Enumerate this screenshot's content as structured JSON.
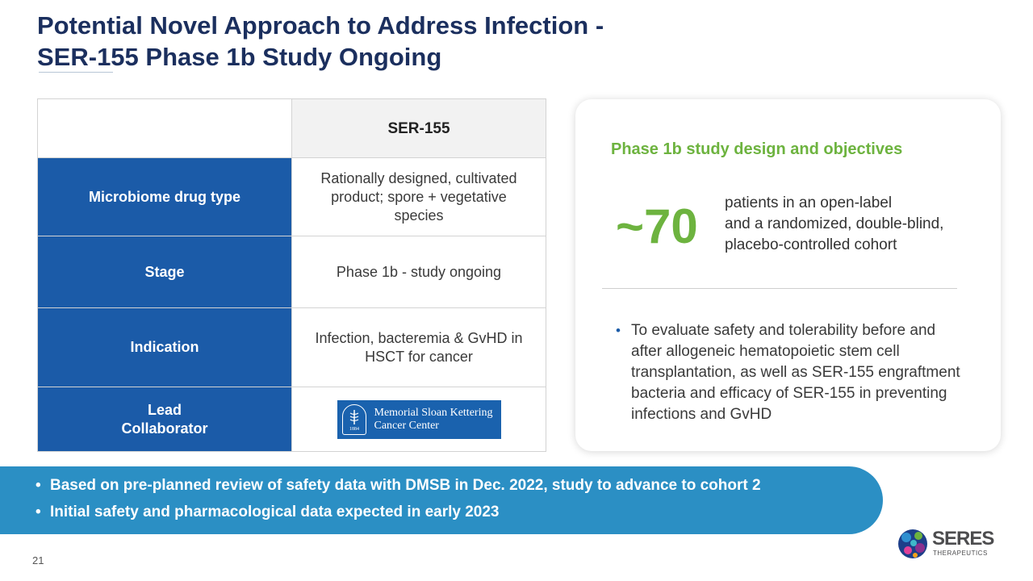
{
  "title": {
    "line1": "Potential Novel Approach to Address Infection -",
    "line2": "SER-155 Phase 1b Study Ongoing"
  },
  "table": {
    "column_header": "SER-155",
    "rows": [
      {
        "label": "Microbiome drug type",
        "value": "Rationally designed, cultivated product; spore + vegetative species"
      },
      {
        "label": "Stage",
        "value": "Phase 1b - study ongoing"
      },
      {
        "label": "Indication",
        "value": "Infection, bacteremia & GvHD in HSCT for cancer"
      },
      {
        "label": "Lead Collaborator",
        "value": ""
      }
    ],
    "collaborator_logo": {
      "line1": "Memorial Sloan Kettering",
      "line2": "Cancer Center",
      "year": "1884",
      "color": "#1a62ae"
    }
  },
  "card": {
    "title": "Phase 1b study design and objectives",
    "big_number": "~70",
    "number_desc": [
      "patients in an open-label",
      "and a randomized, double-blind,",
      "placebo-controlled cohort"
    ],
    "objective": "To evaluate safety and tolerability before and after allogeneic hematopoietic stem cell transplantation, as well as SER-155 engraftment bacteria and efficacy of SER-155 in preventing infections and GvHD"
  },
  "banner": {
    "items": [
      "Based on pre-planned review of safety data with DMSB in Dec. 2022, study to advance to cohort 2",
      "Initial safety and pharmacological data expected in early 2023"
    ],
    "color": "#2b8fc4"
  },
  "page_number": "21",
  "company_logo": {
    "name": "SERES",
    "sub": "THERAPEUTICS"
  },
  "colors": {
    "title": "#1b2f5e",
    "row_header": "#1b5ba8",
    "accent_green": "#6db33f"
  }
}
